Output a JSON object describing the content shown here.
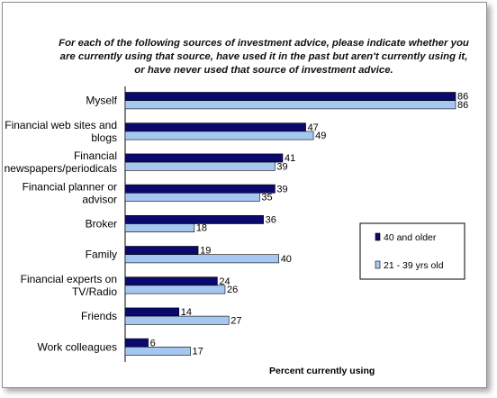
{
  "chart_data": {
    "type": "bar",
    "orientation": "horizontal",
    "title": "For each of the following sources of investment advice, please indicate whether you are currently using that source, have used it in the past but aren't currently using it, or have never used that source of investment advice.",
    "xlabel": "Percent currently using",
    "ylabel": "",
    "xlim": [
      0,
      86
    ],
    "grid": false,
    "legend_position": "right",
    "categories": [
      [
        "Myself"
      ],
      [
        "Financial web sites and",
        "blogs"
      ],
      [
        "Financial",
        "newspapers/periodicals"
      ],
      [
        "Financial planner or",
        "advisor"
      ],
      [
        "Broker"
      ],
      [
        "Family"
      ],
      [
        "Financial experts on",
        "TV/Radio"
      ],
      [
        "Friends"
      ],
      [
        "Work colleagues"
      ]
    ],
    "series": [
      {
        "name": "40 and older",
        "color": "#0a0a6e",
        "values": [
          86,
          47,
          41,
          39,
          36,
          19,
          24,
          14,
          6
        ]
      },
      {
        "name": "21 - 39 yrs old",
        "color": "#a6c8f0",
        "values": [
          86,
          49,
          39,
          35,
          18,
          40,
          26,
          27,
          17
        ]
      }
    ]
  }
}
